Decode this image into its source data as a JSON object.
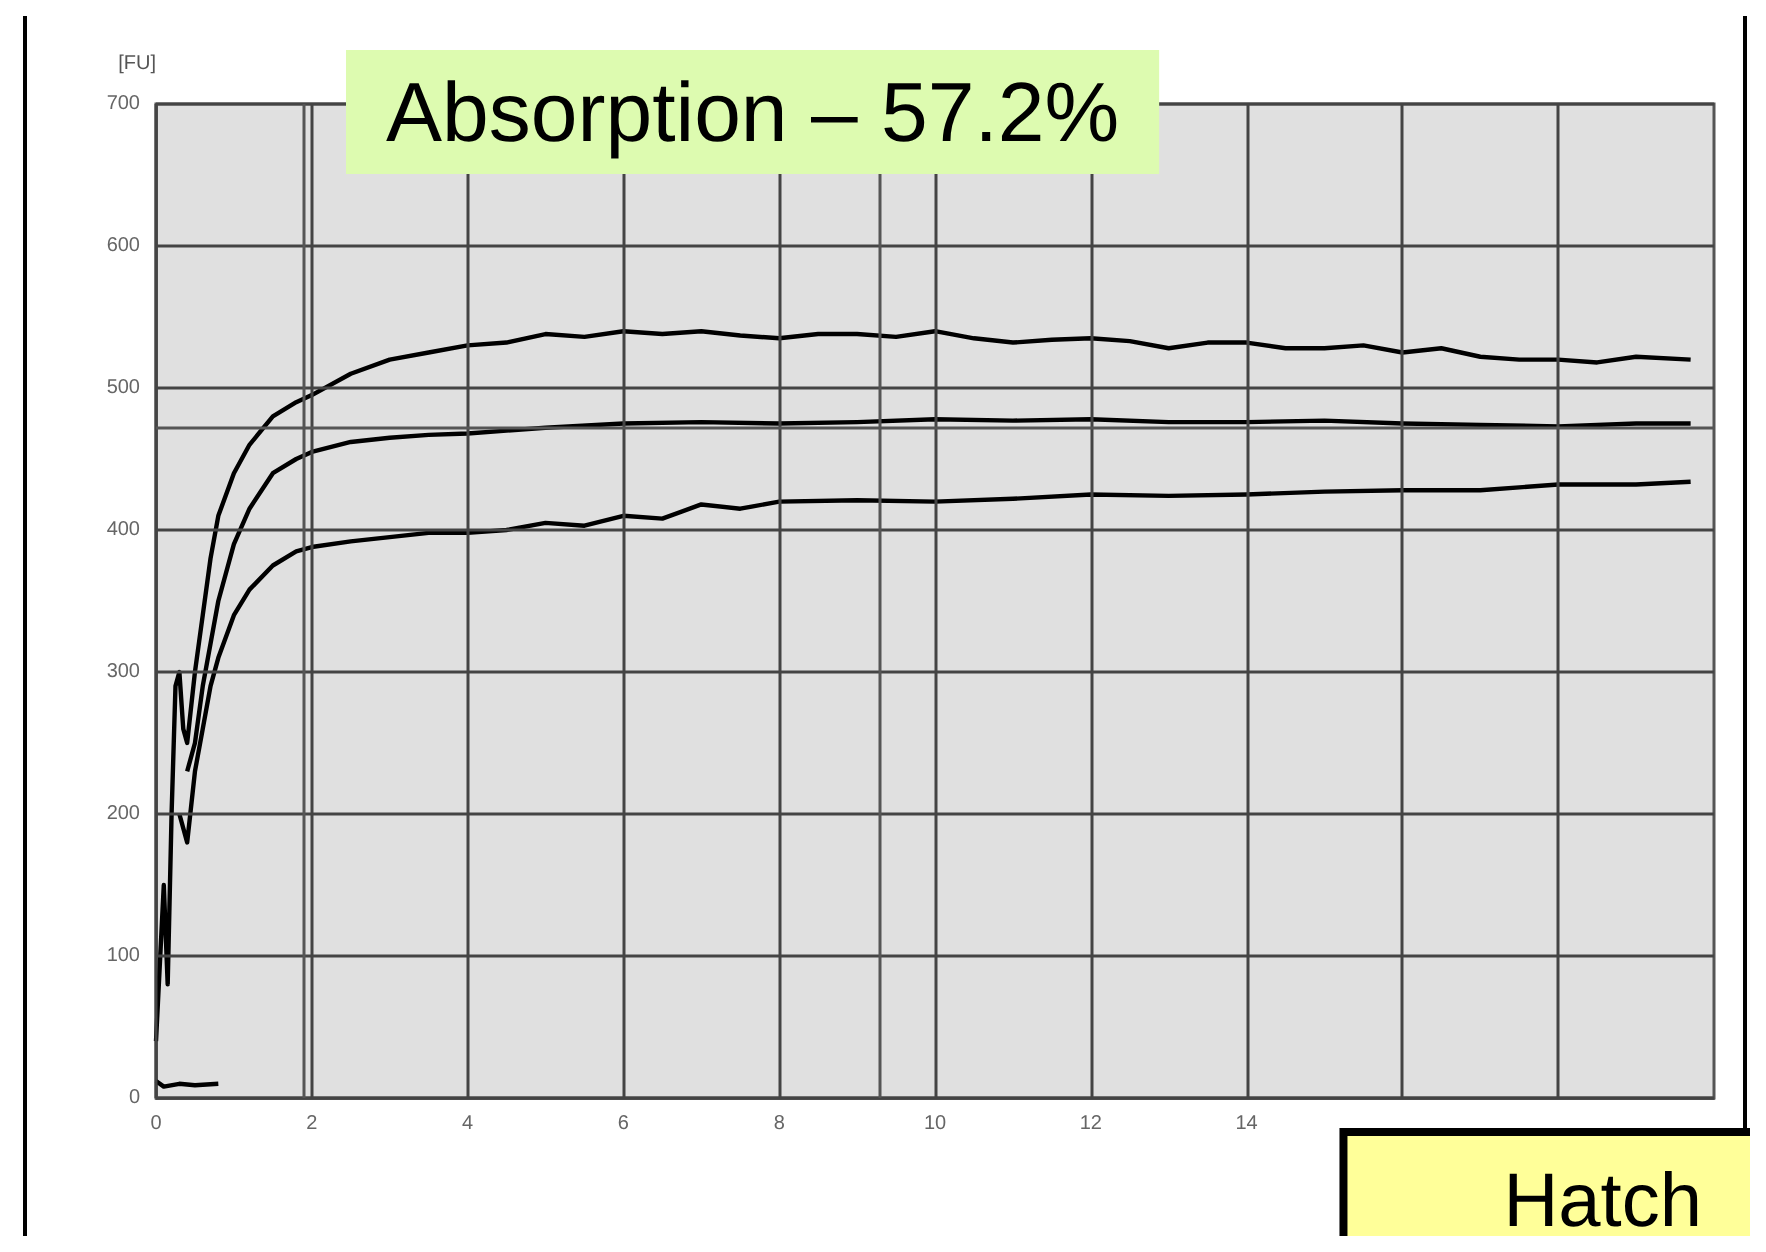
{
  "chart_data": {
    "type": "line",
    "title": "Absorption – 57.2%",
    "ylabel": "[FU]",
    "annotations": [
      "Hatch"
    ],
    "xlim": [
      0,
      20
    ],
    "xticks": [
      0,
      2,
      4,
      6,
      8,
      10,
      12,
      14,
      {
        "value": 16,
        "label": null
      },
      {
        "value": 18,
        "label": null
      }
    ],
    "ylim": [
      0,
      700
    ],
    "yticks": [
      0,
      100,
      200,
      300,
      400,
      500,
      600,
      700
    ],
    "grid": true,
    "marker": "none",
    "line_style": "solid",
    "ref_lines": [
      {
        "axis": "y",
        "value": 472,
        "color": "#555555"
      },
      {
        "axis": "x",
        "value": 1.9,
        "color": "#555555"
      },
      {
        "axis": "x",
        "value": 9.3,
        "color": "#555555"
      }
    ],
    "series": [
      {
        "color": "#000000",
        "x": [
          0,
          0.1,
          0.15,
          0.2,
          0.25,
          0.3,
          0.35,
          0.4,
          0.5,
          0.6,
          0.7,
          0.8,
          1.0,
          1.2,
          1.5,
          1.8,
          2,
          2.5,
          3,
          3.5,
          4,
          4.5,
          5,
          5.5,
          6,
          6.5,
          7,
          7.5,
          8,
          8.5,
          9,
          9.5,
          10,
          10.5,
          11,
          11.5,
          12,
          12.5,
          13,
          13.5,
          14,
          14.5,
          15,
          15.5,
          16,
          16.5,
          17,
          17.5,
          18,
          18.5,
          19,
          19.7
        ],
        "values": [
          40,
          150,
          80,
          200,
          290,
          300,
          260,
          250,
          300,
          340,
          380,
          410,
          440,
          460,
          480,
          490,
          495,
          510,
          520,
          525,
          530,
          532,
          538,
          536,
          540,
          538,
          540,
          537,
          535,
          538,
          538,
          536,
          540,
          535,
          532,
          534,
          535,
          533,
          528,
          532,
          532,
          528,
          528,
          530,
          525,
          528,
          522,
          520,
          520,
          518,
          522,
          520
        ]
      },
      {
        "color": "#000000",
        "x": [
          0.4,
          0.5,
          0.6,
          0.7,
          0.8,
          1.0,
          1.2,
          1.5,
          1.8,
          2,
          2.5,
          3,
          3.5,
          4,
          5,
          6,
          7,
          8,
          9,
          10,
          11,
          12,
          13,
          14,
          15,
          16,
          17,
          18,
          19,
          19.7
        ],
        "values": [
          230,
          250,
          290,
          320,
          350,
          390,
          415,
          440,
          450,
          455,
          462,
          465,
          467,
          468,
          472,
          475,
          476,
          475,
          476,
          478,
          477,
          478,
          476,
          476,
          477,
          475,
          474,
          473,
          475,
          475
        ]
      },
      {
        "color": "#000000",
        "x": [
          0.3,
          0.4,
          0.5,
          0.6,
          0.7,
          0.8,
          1.0,
          1.2,
          1.5,
          1.8,
          2,
          2.5,
          3,
          3.5,
          4,
          4.5,
          5,
          5.5,
          6,
          6.5,
          7,
          7.5,
          8,
          9,
          10,
          11,
          12,
          13,
          14,
          15,
          16,
          17,
          18,
          19,
          19.7
        ],
        "values": [
          200,
          180,
          230,
          260,
          290,
          310,
          340,
          358,
          375,
          385,
          388,
          392,
          395,
          398,
          398,
          400,
          405,
          403,
          410,
          408,
          418,
          415,
          420,
          421,
          420,
          422,
          425,
          424,
          425,
          427,
          428,
          428,
          432,
          432,
          434
        ]
      },
      {
        "color": "#000000",
        "x": [
          0,
          0.1,
          0.3,
          0.5,
          0.8
        ],
        "values": [
          12,
          8,
          10,
          9,
          10
        ]
      }
    ]
  }
}
